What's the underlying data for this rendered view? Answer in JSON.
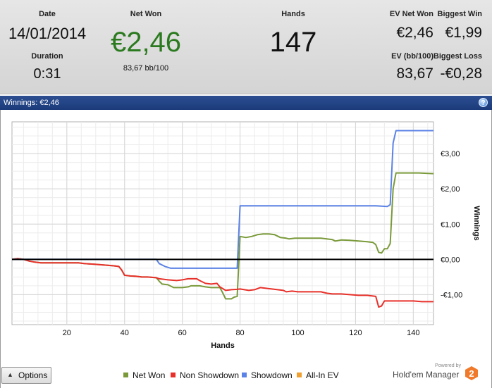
{
  "summary": {
    "date_label": "Date",
    "date_value": "14/01/2014",
    "duration_label": "Duration",
    "duration_value": "0:31",
    "net_won_label": "Net Won",
    "net_won_value": "€2,46",
    "net_won_sub": "83,67 bb/100",
    "hands_label": "Hands",
    "hands_value": "147",
    "ev_net_won_label": "EV Net Won",
    "ev_net_won_value": "€2,46",
    "biggest_win_label": "Biggest Win",
    "biggest_win_value": "€1,99",
    "ev_bb100_label": "EV (bb/100)",
    "ev_bb100_value": "83,67",
    "biggest_loss_label": "Biggest Loss",
    "biggest_loss_value": "-€0,28"
  },
  "titlebar": {
    "title": "Winnings: €2,46",
    "help_glyph": "?"
  },
  "options_button": {
    "label": "Options",
    "arrow_glyph": "▲"
  },
  "branding": {
    "powered_by": "Powered by",
    "name": "Hold'em Manager",
    "logo_digit": "2"
  },
  "colors": {
    "net_won": "#7a9a3a",
    "non_showdown": "#e8302a",
    "showdown": "#5b82e6",
    "all_in_ev": "#f0a030",
    "net_won_big_text": "#2b7a1f",
    "zero_line": "#000000"
  },
  "chart_data": {
    "type": "line",
    "xlabel": "Hands",
    "ylabel": "Winnings",
    "xlim": [
      1,
      147
    ],
    "ylim": [
      -1.85,
      3.9
    ],
    "x_ticks": [
      20,
      40,
      60,
      80,
      100,
      120,
      140
    ],
    "x_tick_labels": [
      "20",
      "40",
      "60",
      "80",
      "100",
      "120",
      "140"
    ],
    "y_ticks": [
      -1,
      0,
      1,
      2,
      3
    ],
    "y_tick_labels": [
      "-€1,00",
      "€0,00",
      "€1,00",
      "€2,00",
      "€3,00"
    ],
    "grid": true,
    "legend_position": "bottom",
    "series": [
      {
        "name": "Net Won",
        "color": "#7a9a3a",
        "points": [
          [
            1,
            0
          ],
          [
            3,
            0.02
          ],
          [
            5,
            0
          ],
          [
            7,
            -0.05
          ],
          [
            9,
            -0.08
          ],
          [
            11,
            -0.1
          ],
          [
            12,
            -0.1
          ],
          [
            16,
            -0.1
          ],
          [
            20,
            -0.1
          ],
          [
            24,
            -0.1
          ],
          [
            26,
            -0.12
          ],
          [
            30,
            -0.14
          ],
          [
            33,
            -0.16
          ],
          [
            36,
            -0.18
          ],
          [
            38,
            -0.2
          ],
          [
            39,
            -0.3
          ],
          [
            40,
            -0.45
          ],
          [
            42,
            -0.47
          ],
          [
            44,
            -0.48
          ],
          [
            46,
            -0.5
          ],
          [
            48,
            -0.5
          ],
          [
            51,
            -0.52
          ],
          [
            52,
            -0.62
          ],
          [
            53,
            -0.7
          ],
          [
            55,
            -0.72
          ],
          [
            57,
            -0.8
          ],
          [
            60,
            -0.8
          ],
          [
            62,
            -0.78
          ],
          [
            63,
            -0.75
          ],
          [
            66,
            -0.75
          ],
          [
            68,
            -0.78
          ],
          [
            70,
            -0.8
          ],
          [
            73,
            -0.8
          ],
          [
            74,
            -0.95
          ],
          [
            75,
            -1.12
          ],
          [
            77,
            -1.12
          ],
          [
            78,
            -1.07
          ],
          [
            79,
            -1.05
          ],
          [
            80,
            0.65
          ],
          [
            82,
            0.62
          ],
          [
            84,
            0.65
          ],
          [
            86,
            0.7
          ],
          [
            88,
            0.72
          ],
          [
            90,
            0.72
          ],
          [
            92,
            0.7
          ],
          [
            94,
            0.62
          ],
          [
            96,
            0.6
          ],
          [
            97,
            0.58
          ],
          [
            99,
            0.6
          ],
          [
            101,
            0.6
          ],
          [
            104,
            0.6
          ],
          [
            108,
            0.6
          ],
          [
            110,
            0.58
          ],
          [
            112,
            0.56
          ],
          [
            113,
            0.52
          ],
          [
            115,
            0.55
          ],
          [
            118,
            0.54
          ],
          [
            121,
            0.52
          ],
          [
            124,
            0.5
          ],
          [
            126,
            0.48
          ],
          [
            127,
            0.42
          ],
          [
            128,
            0.2
          ],
          [
            129,
            0.18
          ],
          [
            130,
            0.3
          ],
          [
            131,
            0.3
          ],
          [
            132,
            0.45
          ],
          [
            133,
            2.0
          ],
          [
            134,
            2.45
          ],
          [
            138,
            2.45
          ],
          [
            142,
            2.45
          ],
          [
            147,
            2.43
          ]
        ]
      },
      {
        "name": "Non Showdown",
        "color": "#e8302a",
        "points": [
          [
            1,
            0
          ],
          [
            3,
            0.02
          ],
          [
            5,
            0
          ],
          [
            7,
            -0.05
          ],
          [
            9,
            -0.08
          ],
          [
            11,
            -0.1
          ],
          [
            12,
            -0.1
          ],
          [
            16,
            -0.1
          ],
          [
            20,
            -0.1
          ],
          [
            24,
            -0.1
          ],
          [
            26,
            -0.12
          ],
          [
            30,
            -0.14
          ],
          [
            33,
            -0.16
          ],
          [
            36,
            -0.18
          ],
          [
            38,
            -0.2
          ],
          [
            39,
            -0.3
          ],
          [
            40,
            -0.45
          ],
          [
            42,
            -0.47
          ],
          [
            44,
            -0.48
          ],
          [
            46,
            -0.5
          ],
          [
            48,
            -0.5
          ],
          [
            51,
            -0.52
          ],
          [
            52,
            -0.55
          ],
          [
            55,
            -0.58
          ],
          [
            58,
            -0.6
          ],
          [
            60,
            -0.58
          ],
          [
            62,
            -0.55
          ],
          [
            65,
            -0.55
          ],
          [
            66,
            -0.6
          ],
          [
            68,
            -0.68
          ],
          [
            70,
            -0.7
          ],
          [
            72,
            -0.68
          ],
          [
            73,
            -0.78
          ],
          [
            75,
            -0.88
          ],
          [
            77,
            -0.86
          ],
          [
            79,
            -0.85
          ],
          [
            80,
            -0.84
          ],
          [
            83,
            -0.88
          ],
          [
            85,
            -0.86
          ],
          [
            87,
            -0.8
          ],
          [
            89,
            -0.82
          ],
          [
            91,
            -0.84
          ],
          [
            93,
            -0.86
          ],
          [
            95,
            -0.88
          ],
          [
            96,
            -0.92
          ],
          [
            98,
            -0.9
          ],
          [
            100,
            -0.92
          ],
          [
            103,
            -0.92
          ],
          [
            106,
            -0.92
          ],
          [
            108,
            -0.92
          ],
          [
            110,
            -0.96
          ],
          [
            112,
            -0.98
          ],
          [
            115,
            -0.98
          ],
          [
            118,
            -1.0
          ],
          [
            121,
            -1.02
          ],
          [
            124,
            -1.02
          ],
          [
            127,
            -1.05
          ],
          [
            128,
            -1.35
          ],
          [
            129,
            -1.32
          ],
          [
            130,
            -1.18
          ],
          [
            133,
            -1.18
          ],
          [
            136,
            -1.18
          ],
          [
            140,
            -1.18
          ],
          [
            143,
            -1.2
          ],
          [
            147,
            -1.2
          ]
        ]
      },
      {
        "name": "Showdown",
        "color": "#5b82e6",
        "points": [
          [
            1,
            0
          ],
          [
            51,
            0
          ],
          [
            52,
            -0.12
          ],
          [
            54,
            -0.2
          ],
          [
            56,
            -0.25
          ],
          [
            60,
            -0.25
          ],
          [
            70,
            -0.25
          ],
          [
            79,
            -0.25
          ],
          [
            80,
            1.52
          ],
          [
            90,
            1.52
          ],
          [
            100,
            1.52
          ],
          [
            110,
            1.52
          ],
          [
            120,
            1.52
          ],
          [
            127,
            1.52
          ],
          [
            131,
            1.5
          ],
          [
            132,
            1.55
          ],
          [
            133,
            3.3
          ],
          [
            134,
            3.65
          ],
          [
            140,
            3.65
          ],
          [
            147,
            3.65
          ]
        ]
      },
      {
        "name": "All-In EV",
        "color": "#f0a030",
        "points": []
      }
    ]
  }
}
